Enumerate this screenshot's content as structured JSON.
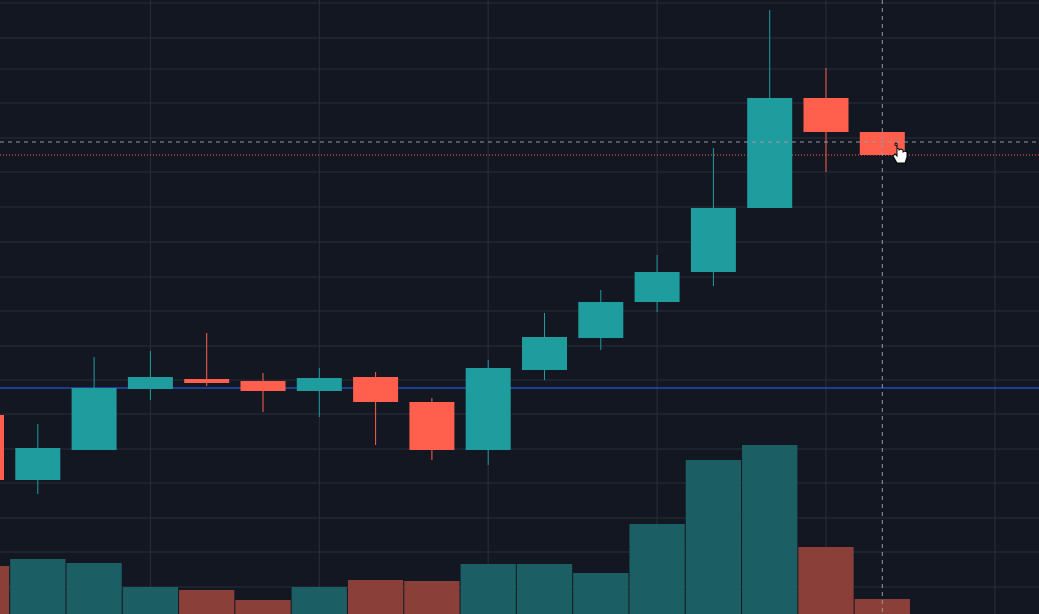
{
  "chart_data": {
    "type": "candlestick",
    "categories": [
      null,
      null,
      null,
      null,
      null,
      null,
      null,
      null,
      null,
      null,
      null,
      null,
      null,
      null,
      null,
      null,
      null
    ],
    "open": [
      199,
      134,
      164,
      225,
      235,
      233,
      223,
      237,
      212,
      164,
      244,
      276,
      312,
      342,
      406,
      516,
      482
    ],
    "high": [
      200,
      190,
      257,
      263,
      281,
      241,
      246,
      242,
      216,
      254,
      301,
      324,
      359,
      466,
      604,
      546,
      482
    ],
    "low": [
      133,
      120,
      164,
      214,
      228,
      202,
      197,
      169,
      154,
      149,
      234,
      264,
      302,
      328,
      406,
      442,
      459
    ],
    "close": [
      134,
      166,
      226,
      237,
      231,
      223,
      236,
      212,
      164,
      246,
      277,
      312,
      342,
      406,
      516,
      482,
      459
    ],
    "volume": [
      48,
      55,
      51,
      27,
      24,
      14,
      27,
      34,
      33,
      50,
      50,
      41,
      90,
      154,
      169,
      67,
      15
    ],
    "up_color": "#1f9c9e",
    "down_color": "#ff5f4c",
    "volume_up_color": "#1b5e63",
    "volume_down_color": "#8a3f39",
    "ylim": [
      0,
      614
    ],
    "yticks": [
      27,
      62,
      96,
      131,
      165,
      200,
      234,
      268,
      303,
      337,
      372,
      407,
      442,
      476,
      511,
      545,
      576,
      611
    ],
    "xticks": [
      3,
      6,
      9,
      12,
      15,
      18
    ],
    "volume_ylim": [
      0,
      614
    ],
    "grid": true,
    "price_lines": [
      {
        "value": 226,
        "color": "#2962ff",
        "style": "solid"
      },
      {
        "value": 459,
        "color": "#ff5f4c",
        "style": "dotted"
      }
    ],
    "crosshair": {
      "x": 16,
      "y": 472
    }
  }
}
